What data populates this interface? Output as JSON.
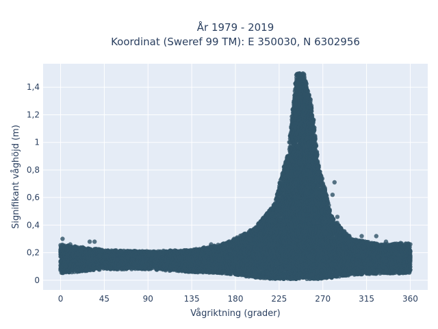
{
  "chart_data": {
    "type": "scatter",
    "title_line1": "År 1979 - 2019",
    "title_line2": "Koordinat (Sweref 99 TM): E 350030, N 6302956",
    "xlabel": "Vågriktning (grader)",
    "ylabel": "Signifikant våghöjd (m)",
    "xlim": [
      -18,
      378
    ],
    "ylim": [
      -0.07,
      1.57
    ],
    "x_ticks": [
      0,
      45,
      90,
      135,
      180,
      225,
      270,
      315,
      360
    ],
    "x_tick_labels": [
      "0",
      "45",
      "90",
      "135",
      "180",
      "225",
      "270",
      "315",
      "360"
    ],
    "y_ticks": [
      0,
      0.2,
      0.4,
      0.6,
      0.8,
      1,
      1.2,
      1.4
    ],
    "y_tick_labels": [
      "0",
      "0,2",
      "0,4",
      "0,6",
      "0,8",
      "1",
      "1,2",
      "1,4"
    ],
    "marker_color": "#2f5266",
    "plot_bg": "#e5ecf6",
    "grid": true,
    "envelope": [
      {
        "x": 0,
        "low": 0.05,
        "high": 0.26
      },
      {
        "x": 45,
        "low": 0.08,
        "high": 0.22
      },
      {
        "x": 90,
        "low": 0.08,
        "high": 0.21
      },
      {
        "x": 135,
        "low": 0.06,
        "high": 0.22
      },
      {
        "x": 170,
        "low": 0.05,
        "high": 0.27
      },
      {
        "x": 200,
        "low": 0.02,
        "high": 0.38
      },
      {
        "x": 220,
        "low": 0.01,
        "high": 0.55
      },
      {
        "x": 235,
        "low": 0.01,
        "high": 0.95
      },
      {
        "x": 243,
        "low": 0.01,
        "high": 1.5
      },
      {
        "x": 250,
        "low": 0.01,
        "high": 1.5
      },
      {
        "x": 258,
        "low": 0.01,
        "high": 1.3
      },
      {
        "x": 265,
        "low": 0.01,
        "high": 0.85
      },
      {
        "x": 280,
        "low": 0.02,
        "high": 0.45
      },
      {
        "x": 300,
        "low": 0.04,
        "high": 0.3
      },
      {
        "x": 330,
        "low": 0.05,
        "high": 0.26
      },
      {
        "x": 360,
        "low": 0.05,
        "high": 0.27
      }
    ],
    "outliers": [
      {
        "x": 2,
        "y": 0.3
      },
      {
        "x": 30,
        "y": 0.28
      },
      {
        "x": 35,
        "y": 0.28
      },
      {
        "x": 10,
        "y": 0.26
      },
      {
        "x": 155,
        "y": 0.26
      },
      {
        "x": 195,
        "y": 0.3
      },
      {
        "x": 282,
        "y": 0.71
      },
      {
        "x": 285,
        "y": 0.46
      },
      {
        "x": 293,
        "y": 0.34
      },
      {
        "x": 310,
        "y": 0.32
      },
      {
        "x": 325,
        "y": 0.32
      },
      {
        "x": 335,
        "y": 0.28
      },
      {
        "x": 350,
        "y": 0.27
      },
      {
        "x": 280,
        "y": 0.62
      }
    ]
  }
}
